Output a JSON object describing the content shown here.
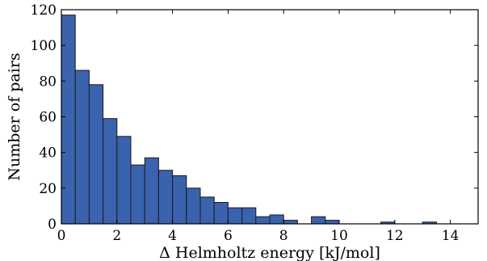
{
  "chart_data": {
    "type": "bar",
    "title": "",
    "xlabel": "Δ Helmholtz energy [kJ/mol]",
    "ylabel": "Number of pairs",
    "xlim": [
      0,
      15
    ],
    "ylim": [
      0,
      120
    ],
    "xticks": [
      0,
      2,
      4,
      6,
      8,
      10,
      12,
      14
    ],
    "yticks": [
      0,
      20,
      40,
      60,
      80,
      100,
      120
    ],
    "grid": false,
    "bin_width": 0.5,
    "bins": [
      {
        "x0": 0.0,
        "x1": 0.5,
        "count": 117
      },
      {
        "x0": 0.5,
        "x1": 1.0,
        "count": 86
      },
      {
        "x0": 1.0,
        "x1": 1.5,
        "count": 78
      },
      {
        "x0": 1.5,
        "x1": 2.0,
        "count": 59
      },
      {
        "x0": 2.0,
        "x1": 2.5,
        "count": 49
      },
      {
        "x0": 2.5,
        "x1": 3.0,
        "count": 33
      },
      {
        "x0": 3.0,
        "x1": 3.5,
        "count": 37
      },
      {
        "x0": 3.5,
        "x1": 4.0,
        "count": 30
      },
      {
        "x0": 4.0,
        "x1": 4.5,
        "count": 27
      },
      {
        "x0": 4.5,
        "x1": 5.0,
        "count": 20
      },
      {
        "x0": 5.0,
        "x1": 5.5,
        "count": 15
      },
      {
        "x0": 5.5,
        "x1": 6.0,
        "count": 12
      },
      {
        "x0": 6.0,
        "x1": 6.5,
        "count": 9
      },
      {
        "x0": 6.5,
        "x1": 7.0,
        "count": 9
      },
      {
        "x0": 7.0,
        "x1": 7.5,
        "count": 4
      },
      {
        "x0": 7.5,
        "x1": 8.0,
        "count": 5
      },
      {
        "x0": 8.0,
        "x1": 8.5,
        "count": 2
      },
      {
        "x0": 8.5,
        "x1": 9.0,
        "count": 0
      },
      {
        "x0": 9.0,
        "x1": 9.5,
        "count": 4
      },
      {
        "x0": 9.5,
        "x1": 10.0,
        "count": 2
      },
      {
        "x0": 10.0,
        "x1": 10.5,
        "count": 0
      },
      {
        "x0": 10.5,
        "x1": 11.0,
        "count": 0
      },
      {
        "x0": 11.0,
        "x1": 11.5,
        "count": 0
      },
      {
        "x0": 11.5,
        "x1": 12.0,
        "count": 1
      },
      {
        "x0": 12.0,
        "x1": 12.5,
        "count": 0
      },
      {
        "x0": 12.5,
        "x1": 13.0,
        "count": 0
      },
      {
        "x0": 13.0,
        "x1": 13.5,
        "count": 1
      },
      {
        "x0": 13.5,
        "x1": 14.0,
        "count": 0
      },
      {
        "x0": 14.0,
        "x1": 14.5,
        "count": 0
      },
      {
        "x0": 14.5,
        "x1": 15.0,
        "count": 0
      }
    ],
    "colors": {
      "bar_fill": "#3a62ad"
    }
  }
}
